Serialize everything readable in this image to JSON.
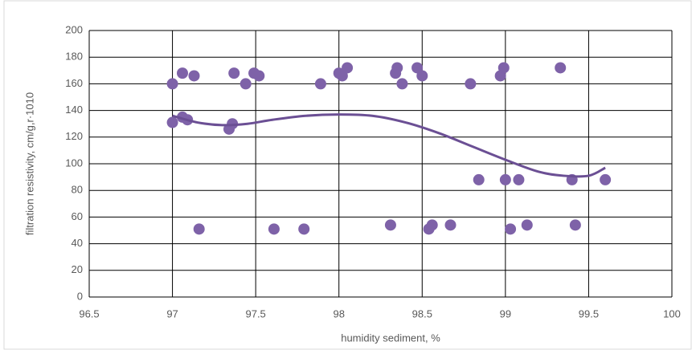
{
  "chart_data": {
    "type": "scatter",
    "xlabel": "humidity sediment, %",
    "ylabel": "filtration resistivity, cm/g,r·1010",
    "xlim": [
      96.5,
      100
    ],
    "xticks": [
      96.5,
      97,
      97.5,
      98,
      98.5,
      99,
      99.5,
      100
    ],
    "ylim": [
      0,
      200
    ],
    "yticks": [
      0,
      20,
      40,
      60,
      80,
      100,
      120,
      140,
      160,
      180,
      200
    ],
    "grid": true,
    "series": [
      {
        "color": "#7e62a8",
        "x": [
          97.0,
          97.0,
          97.06,
          97.06,
          97.09,
          97.13,
          97.16,
          97.34,
          97.36,
          97.37,
          97.44,
          97.49,
          97.52,
          97.61,
          97.79,
          97.89,
          98.0,
          98.02,
          98.05,
          98.31,
          98.34,
          98.35,
          98.38,
          98.47,
          98.5,
          98.54,
          98.56,
          98.67,
          98.79,
          98.84,
          98.97,
          98.99,
          99.0,
          99.03,
          99.08,
          99.13,
          99.33,
          99.4,
          99.42,
          99.6
        ],
        "values": [
          160,
          131,
          168,
          135,
          133,
          166,
          51,
          126,
          130,
          168,
          160,
          168,
          166,
          51,
          51,
          160,
          168,
          166,
          172,
          54,
          168,
          172,
          160,
          172,
          166,
          51,
          54,
          54,
          160,
          88,
          166,
          172,
          88,
          51,
          88,
          54,
          172,
          88,
          54,
          88
        ]
      }
    ],
    "trendline": {
      "color": "#6b4f94",
      "x": [
        97.0,
        97.15,
        97.3,
        97.45,
        97.6,
        97.8,
        98.0,
        98.2,
        98.4,
        98.6,
        98.8,
        99.0,
        99.2,
        99.35,
        99.5,
        99.6
      ],
      "values": [
        136,
        131,
        129,
        130,
        133,
        136,
        137,
        136,
        131,
        123,
        113,
        103,
        94,
        91,
        91,
        97
      ]
    }
  }
}
